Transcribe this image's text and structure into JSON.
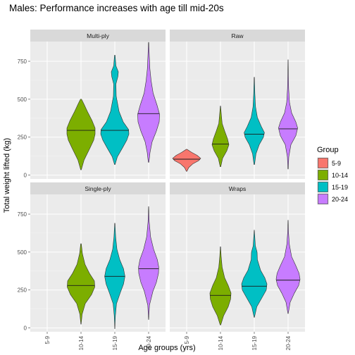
{
  "chart_data": {
    "type": "violin",
    "title": "Males: Performance increases with age till mid-20s",
    "xlabel": "Age groups (yrs)",
    "ylabel": "Total weight lifted (kg)",
    "categories": [
      "5-9",
      "10-14",
      "15-19",
      "20-24"
    ],
    "ylim": [
      -25,
      880
    ],
    "yticks": [
      0,
      250,
      500,
      750
    ],
    "grid": true,
    "legend": {
      "title": "Group",
      "position": "right",
      "entries": [
        {
          "label": "5-9",
          "color": "#F8766D"
        },
        {
          "label": "10-14",
          "color": "#7CAE00"
        },
        {
          "label": "15-19",
          "color": "#00BFC4"
        },
        {
          "label": "20-24",
          "color": "#C77CFF"
        }
      ]
    },
    "panels": [
      {
        "name": "Multi-ply",
        "violins": [
          {
            "group": "10-14",
            "min": 35,
            "max": 500,
            "median": 295,
            "profile": [
              [
                35,
                0.02
              ],
              [
                100,
                0.22
              ],
              [
                175,
                0.62
              ],
              [
                230,
                0.9
              ],
              [
                270,
                1.0
              ],
              [
                310,
                1.0
              ],
              [
                360,
                0.78
              ],
              [
                420,
                0.45
              ],
              [
                470,
                0.2
              ],
              [
                500,
                0.04
              ]
            ]
          },
          {
            "group": "15-19",
            "min": 70,
            "max": 790,
            "median": 295,
            "profile": [
              [
                70,
                0.02
              ],
              [
                120,
                0.18
              ],
              [
                180,
                0.55
              ],
              [
                230,
                0.85
              ],
              [
                270,
                1.0
              ],
              [
                300,
                0.98
              ],
              [
                350,
                0.6
              ],
              [
                420,
                0.3
              ],
              [
                520,
                0.1
              ],
              [
                600,
                0.08
              ],
              [
                650,
                0.22
              ],
              [
                680,
                0.25
              ],
              [
                720,
                0.08
              ],
              [
                790,
                0.02
              ]
            ]
          },
          {
            "group": "20-24",
            "min": 85,
            "max": 875,
            "median": 405,
            "profile": [
              [
                85,
                0.02
              ],
              [
                150,
                0.1
              ],
              [
                220,
                0.25
              ],
              [
                290,
                0.55
              ],
              [
                350,
                0.75
              ],
              [
                400,
                0.78
              ],
              [
                460,
                0.6
              ],
              [
                540,
                0.32
              ],
              [
                620,
                0.18
              ],
              [
                700,
                0.09
              ],
              [
                780,
                0.05
              ],
              [
                875,
                0.01
              ]
            ]
          }
        ]
      },
      {
        "name": "Raw",
        "violins": [
          {
            "group": "5-9",
            "min": 25,
            "max": 170,
            "median": 105,
            "profile": [
              [
                25,
                0.02
              ],
              [
                50,
                0.15
              ],
              [
                75,
                0.45
              ],
              [
                95,
                0.85
              ],
              [
                110,
                1.0
              ],
              [
                130,
                0.75
              ],
              [
                150,
                0.35
              ],
              [
                170,
                0.02
              ]
            ]
          },
          {
            "group": "10-14",
            "min": 55,
            "max": 455,
            "median": 205,
            "profile": [
              [
                55,
                0.02
              ],
              [
                110,
                0.15
              ],
              [
                160,
                0.45
              ],
              [
                200,
                0.6
              ],
              [
                240,
                0.5
              ],
              [
                290,
                0.3
              ],
              [
                340,
                0.12
              ],
              [
                400,
                0.06
              ],
              [
                455,
                0.01
              ]
            ]
          },
          {
            "group": "15-19",
            "min": 70,
            "max": 645,
            "median": 270,
            "profile": [
              [
                70,
                0.02
              ],
              [
                140,
                0.12
              ],
              [
                200,
                0.35
              ],
              [
                250,
                0.65
              ],
              [
                280,
                0.72
              ],
              [
                320,
                0.5
              ],
              [
                380,
                0.22
              ],
              [
                450,
                0.09
              ],
              [
                540,
                0.04
              ],
              [
                645,
                0.01
              ]
            ]
          },
          {
            "group": "20-24",
            "min": 40,
            "max": 760,
            "median": 305,
            "profile": [
              [
                40,
                0.01
              ],
              [
                120,
                0.05
              ],
              [
                200,
                0.2
              ],
              [
                260,
                0.55
              ],
              [
                310,
                0.68
              ],
              [
                350,
                0.55
              ],
              [
                410,
                0.25
              ],
              [
                480,
                0.1
              ],
              [
                570,
                0.04
              ],
              [
                660,
                0.02
              ],
              [
                760,
                0.005
              ]
            ]
          }
        ]
      },
      {
        "name": "Single-ply",
        "violins": [
          {
            "group": "10-14",
            "min": 25,
            "max": 555,
            "median": 280,
            "profile": [
              [
                25,
                0.01
              ],
              [
                90,
                0.08
              ],
              [
                160,
                0.3
              ],
              [
                220,
                0.75
              ],
              [
                270,
                0.98
              ],
              [
                310,
                0.95
              ],
              [
                360,
                0.6
              ],
              [
                420,
                0.28
              ],
              [
                490,
                0.1
              ],
              [
                555,
                0.02
              ]
            ]
          },
          {
            "group": "15-19",
            "min": -5,
            "max": 690,
            "median": 340,
            "profile": [
              [
                -5,
                0.005
              ],
              [
                80,
                0.04
              ],
              [
                160,
                0.12
              ],
              [
                230,
                0.38
              ],
              [
                290,
                0.62
              ],
              [
                340,
                0.72
              ],
              [
                390,
                0.62
              ],
              [
                450,
                0.35
              ],
              [
                520,
                0.15
              ],
              [
                600,
                0.06
              ],
              [
                690,
                0.01
              ]
            ]
          },
          {
            "group": "20-24",
            "min": 55,
            "max": 800,
            "median": 390,
            "profile": [
              [
                55,
                0.005
              ],
              [
                150,
                0.06
              ],
              [
                240,
                0.3
              ],
              [
                300,
                0.55
              ],
              [
                360,
                0.7
              ],
              [
                400,
                0.72
              ],
              [
                450,
                0.62
              ],
              [
                520,
                0.35
              ],
              [
                600,
                0.14
              ],
              [
                700,
                0.04
              ],
              [
                800,
                0.005
              ]
            ]
          }
        ]
      },
      {
        "name": "Wraps",
        "violins": [
          {
            "group": "10-14",
            "min": 20,
            "max": 535,
            "median": 215,
            "profile": [
              [
                20,
                0.02
              ],
              [
                80,
                0.22
              ],
              [
                140,
                0.55
              ],
              [
                190,
                0.72
              ],
              [
                230,
                0.75
              ],
              [
                280,
                0.55
              ],
              [
                330,
                0.3
              ],
              [
                400,
                0.12
              ],
              [
                470,
                0.05
              ],
              [
                535,
                0.01
              ]
            ]
          },
          {
            "group": "15-19",
            "min": 70,
            "max": 645,
            "median": 275,
            "profile": [
              [
                70,
                0.01
              ],
              [
                140,
                0.18
              ],
              [
                200,
                0.55
              ],
              [
                250,
                0.85
              ],
              [
                290,
                0.9
              ],
              [
                330,
                0.75
              ],
              [
                380,
                0.45
              ],
              [
                450,
                0.22
              ],
              [
                500,
                0.2
              ],
              [
                540,
                0.08
              ],
              [
                645,
                0.005
              ]
            ]
          },
          {
            "group": "20-24",
            "min": 95,
            "max": 710,
            "median": 315,
            "profile": [
              [
                95,
                0.01
              ],
              [
                170,
                0.15
              ],
              [
                230,
                0.45
              ],
              [
                280,
                0.75
              ],
              [
                320,
                0.85
              ],
              [
                360,
                0.78
              ],
              [
                410,
                0.55
              ],
              [
                470,
                0.25
              ],
              [
                550,
                0.09
              ],
              [
                630,
                0.03
              ],
              [
                710,
                0.005
              ]
            ]
          }
        ]
      }
    ]
  }
}
